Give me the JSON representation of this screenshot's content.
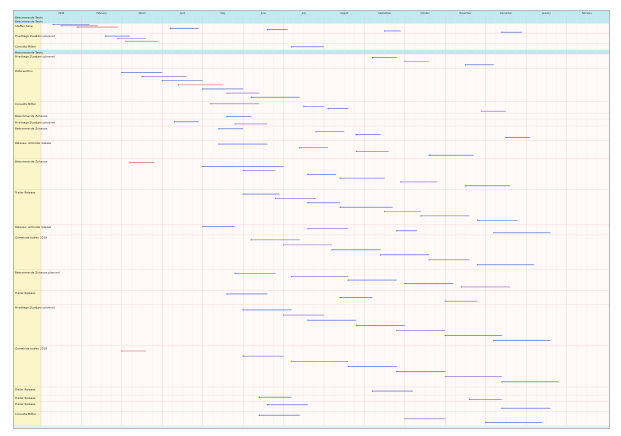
{
  "window": {
    "tab_label": "",
    "title": ""
  },
  "timeline": {
    "months": [
      "2018",
      "February",
      "March",
      "April",
      "May",
      "June",
      "July",
      "August",
      "September",
      "October",
      "November",
      "December",
      "January",
      "February"
    ],
    "weeks": [
      "",
      "",
      "",
      "",
      "",
      "",
      "",
      "",
      "",
      "",
      "",
      "",
      "",
      "",
      "",
      "",
      "",
      "",
      "",
      "",
      "",
      "",
      "",
      "",
      "",
      "",
      "",
      "",
      "",
      "",
      "",
      "",
      "",
      "",
      "",
      "",
      "",
      "",
      "",
      "",
      "",
      "",
      "",
      "",
      "",
      "",
      "",
      "",
      "",
      "",
      "",
      "",
      "",
      "",
      "",
      ""
    ]
  },
  "lanes": [
    {
      "label": "Bekommende Tasks",
      "kind": "header",
      "height": 4
    },
    {
      "label": "Bekommende Tasks",
      "kind": "header",
      "height": 4
    },
    {
      "label": "Steffen Seve",
      "kind": "row",
      "height": 10
    },
    {
      "label": "Friedhage Zusatzen planned",
      "kind": "row",
      "height": 10
    },
    {
      "label": "Consults Mittel",
      "kind": "row",
      "height": 6
    },
    {
      "label": "Bekommende Tasks",
      "kind": "header",
      "height": 4
    },
    {
      "label": "Friedhage Zusatzen planned",
      "kind": "row",
      "height": 14
    },
    {
      "label": "Data section",
      "kind": "row",
      "height": 32
    },
    {
      "label": "Consults Mittel",
      "kind": "row",
      "height": 12
    },
    {
      "label": "Bekommende Zuhause",
      "kind": "row",
      "height": 6
    },
    {
      "label": "Friedhage Zusatzen planned",
      "kind": "row",
      "height": 6
    },
    {
      "label": "Bekommende Zuhause",
      "kind": "row",
      "height": 14
    },
    {
      "label": "Release, umbrella release",
      "kind": "row",
      "height": 18
    },
    {
      "label": "Bekommende Zuhause",
      "kind": "row",
      "height": 30
    },
    {
      "label": "Trailer Release",
      "kind": "row",
      "height": 34
    },
    {
      "label": "Release, umbrella release",
      "kind": "row",
      "height": 10
    },
    {
      "label": "Gemeinde laufen 2019",
      "kind": "row",
      "height": 34
    },
    {
      "label": "Bekommende Zuhause planned",
      "kind": "row",
      "height": 20
    },
    {
      "label": "Trailer Release",
      "kind": "row",
      "height": 14
    },
    {
      "label": "Friedhage Zusatzen planned",
      "kind": "row",
      "height": 40
    },
    {
      "label": "Gemeinde laufen 2019",
      "kind": "row",
      "height": 40
    },
    {
      "label": "Trailer Release",
      "kind": "row",
      "height": 8
    },
    {
      "label": "Trailer Release",
      "kind": "row",
      "height": 6
    },
    {
      "label": "Trailer Release",
      "kind": "row",
      "height": 10
    },
    {
      "label": "Consults Mittel",
      "kind": "row",
      "height": 14
    }
  ],
  "colors": {
    "header_band": "#bfeaf0",
    "lane_fill": "#fdfad4",
    "lane_label_fill": "#fbf6c9",
    "grid_major": "#e7c9c9",
    "grid_minor": "#f2e6e6",
    "bar_blue": "#3d5bd1",
    "bar_purple": "#8a63c6",
    "bar_red": "#d35b5b"
  },
  "tasks": [
    {
      "lane": 2,
      "start": 0.3,
      "end": 1.2,
      "label": "",
      "color": "blue"
    },
    {
      "lane": 2,
      "start": 0.5,
      "end": 1.4,
      "label": "",
      "color": "purple"
    },
    {
      "lane": 2,
      "start": 0.9,
      "end": 1.9,
      "label": "",
      "color": "red"
    },
    {
      "lane": 2,
      "start": 3.2,
      "end": 3.9,
      "label": "",
      "color": "blue"
    },
    {
      "lane": 2,
      "start": 5.6,
      "end": 6.1,
      "label": "",
      "color": "blue"
    },
    {
      "lane": 2,
      "start": 8.5,
      "end": 8.9,
      "label": "",
      "color": "blue"
    },
    {
      "lane": 2,
      "start": 11.4,
      "end": 11.9,
      "label": "",
      "color": "blue"
    },
    {
      "lane": 3,
      "start": 1.6,
      "end": 2.2,
      "label": "",
      "color": "blue"
    },
    {
      "lane": 3,
      "start": 1.9,
      "end": 2.6,
      "label": "",
      "color": "purple"
    },
    {
      "lane": 3,
      "start": 2.1,
      "end": 2.9,
      "label": "",
      "color": "red"
    },
    {
      "lane": 4,
      "start": 6.2,
      "end": 7.0,
      "label": "",
      "color": "blue"
    },
    {
      "lane": 6,
      "start": 8.2,
      "end": 8.8,
      "label": "",
      "color": "blue"
    },
    {
      "lane": 6,
      "start": 9.0,
      "end": 9.6,
      "label": "",
      "color": "purple"
    },
    {
      "lane": 6,
      "start": 10.5,
      "end": 11.2,
      "label": "",
      "color": "blue"
    },
    {
      "lane": 7,
      "start": 2.0,
      "end": 3.0,
      "label": "",
      "color": "blue"
    },
    {
      "lane": 7,
      "start": 2.5,
      "end": 3.6,
      "label": "",
      "color": "purple"
    },
    {
      "lane": 7,
      "start": 3.0,
      "end": 4.0,
      "label": "",
      "color": "blue"
    },
    {
      "lane": 7,
      "start": 3.4,
      "end": 4.5,
      "label": "",
      "color": "red"
    },
    {
      "lane": 7,
      "start": 4.0,
      "end": 5.0,
      "label": "",
      "color": "blue"
    },
    {
      "lane": 7,
      "start": 4.6,
      "end": 5.4,
      "label": "",
      "color": "purple"
    },
    {
      "lane": 7,
      "start": 5.2,
      "end": 6.4,
      "label": "",
      "color": "blue"
    },
    {
      "lane": 8,
      "start": 4.2,
      "end": 5.4,
      "label": "",
      "color": "purple"
    },
    {
      "lane": 8,
      "start": 6.5,
      "end": 7.0,
      "label": "",
      "color": "blue"
    },
    {
      "lane": 8,
      "start": 7.1,
      "end": 7.6,
      "label": "",
      "color": "blue"
    },
    {
      "lane": 8,
      "start": 10.9,
      "end": 11.5,
      "label": "",
      "color": "purple"
    },
    {
      "lane": 9,
      "start": 4.6,
      "end": 5.2,
      "label": "",
      "color": "blue"
    },
    {
      "lane": 10,
      "start": 3.3,
      "end": 3.9,
      "label": "",
      "color": "blue"
    },
    {
      "lane": 10,
      "start": 4.8,
      "end": 5.6,
      "label": "",
      "color": "purple"
    },
    {
      "lane": 11,
      "start": 4.4,
      "end": 5.0,
      "label": "",
      "color": "blue"
    },
    {
      "lane": 11,
      "start": 6.8,
      "end": 7.5,
      "label": "",
      "color": "purple"
    },
    {
      "lane": 11,
      "start": 7.8,
      "end": 8.4,
      "label": "",
      "color": "blue"
    },
    {
      "lane": 11,
      "start": 11.5,
      "end": 12.1,
      "label": "",
      "color": "blue"
    },
    {
      "lane": 12,
      "start": 4.4,
      "end": 5.6,
      "label": "",
      "color": "blue"
    },
    {
      "lane": 12,
      "start": 6.4,
      "end": 7.1,
      "label": "",
      "color": "blue"
    },
    {
      "lane": 12,
      "start": 7.8,
      "end": 8.6,
      "label": "",
      "color": "purple"
    },
    {
      "lane": 12,
      "start": 9.6,
      "end": 10.7,
      "label": "",
      "color": "blue"
    },
    {
      "lane": 13,
      "start": 2.2,
      "end": 2.8,
      "label": "",
      "color": "red"
    },
    {
      "lane": 13,
      "start": 4.0,
      "end": 6.0,
      "label": "",
      "color": "blue"
    },
    {
      "lane": 13,
      "start": 5.0,
      "end": 5.8,
      "label": "",
      "color": "purple"
    },
    {
      "lane": 13,
      "start": 6.6,
      "end": 7.3,
      "label": "",
      "color": "blue"
    },
    {
      "lane": 13,
      "start": 7.4,
      "end": 8.5,
      "label": "",
      "color": "blue"
    },
    {
      "lane": 13,
      "start": 8.9,
      "end": 9.8,
      "label": "",
      "color": "purple"
    },
    {
      "lane": 13,
      "start": 10.5,
      "end": 11.6,
      "label": "",
      "color": "blue"
    },
    {
      "lane": 14,
      "start": 5.0,
      "end": 5.9,
      "label": "",
      "color": "blue"
    },
    {
      "lane": 14,
      "start": 5.8,
      "end": 6.8,
      "label": "",
      "color": "purple"
    },
    {
      "lane": 14,
      "start": 6.6,
      "end": 7.4,
      "label": "",
      "color": "blue"
    },
    {
      "lane": 14,
      "start": 7.4,
      "end": 8.7,
      "label": "",
      "color": "blue"
    },
    {
      "lane": 14,
      "start": 8.5,
      "end": 9.4,
      "label": "",
      "color": "purple"
    },
    {
      "lane": 14,
      "start": 9.4,
      "end": 10.6,
      "label": "",
      "color": "blue"
    },
    {
      "lane": 14,
      "start": 10.8,
      "end": 11.8,
      "label": "",
      "color": "blue"
    },
    {
      "lane": 15,
      "start": 4.0,
      "end": 4.8,
      "label": "",
      "color": "blue"
    },
    {
      "lane": 15,
      "start": 6.6,
      "end": 7.6,
      "label": "",
      "color": "purple"
    },
    {
      "lane": 15,
      "start": 8.8,
      "end": 9.3,
      "label": "",
      "color": "blue"
    },
    {
      "lane": 15,
      "start": 11.2,
      "end": 12.6,
      "label": "",
      "color": "blue"
    },
    {
      "lane": 16,
      "start": 5.2,
      "end": 6.4,
      "label": "",
      "color": "blue"
    },
    {
      "lane": 16,
      "start": 6.0,
      "end": 7.2,
      "label": "",
      "color": "purple"
    },
    {
      "lane": 16,
      "start": 7.2,
      "end": 8.4,
      "label": "",
      "color": "blue"
    },
    {
      "lane": 16,
      "start": 8.4,
      "end": 9.6,
      "label": "",
      "color": "blue"
    },
    {
      "lane": 16,
      "start": 9.6,
      "end": 10.6,
      "label": "",
      "color": "purple"
    },
    {
      "lane": 16,
      "start": 10.8,
      "end": 12.2,
      "label": "",
      "color": "blue"
    },
    {
      "lane": 17,
      "start": 4.8,
      "end": 5.8,
      "label": "",
      "color": "blue"
    },
    {
      "lane": 17,
      "start": 6.2,
      "end": 7.6,
      "label": "",
      "color": "purple"
    },
    {
      "lane": 17,
      "start": 7.6,
      "end": 8.8,
      "label": "",
      "color": "blue"
    },
    {
      "lane": 17,
      "start": 9.0,
      "end": 10.2,
      "label": "",
      "color": "blue"
    },
    {
      "lane": 17,
      "start": 10.4,
      "end": 11.6,
      "label": "",
      "color": "purple"
    },
    {
      "lane": 18,
      "start": 4.6,
      "end": 5.6,
      "label": "",
      "color": "blue"
    },
    {
      "lane": 18,
      "start": 7.4,
      "end": 8.2,
      "label": "",
      "color": "blue"
    },
    {
      "lane": 18,
      "start": 10.0,
      "end": 10.8,
      "label": "",
      "color": "purple"
    },
    {
      "lane": 19,
      "start": 5.0,
      "end": 6.2,
      "label": "",
      "color": "blue"
    },
    {
      "lane": 19,
      "start": 6.0,
      "end": 7.0,
      "label": "",
      "color": "purple"
    },
    {
      "lane": 19,
      "start": 6.6,
      "end": 7.8,
      "label": "",
      "color": "blue"
    },
    {
      "lane": 19,
      "start": 7.8,
      "end": 9.0,
      "label": "",
      "color": "blue"
    },
    {
      "lane": 19,
      "start": 8.8,
      "end": 10.0,
      "label": "",
      "color": "purple"
    },
    {
      "lane": 19,
      "start": 10.0,
      "end": 11.4,
      "label": "",
      "color": "blue"
    },
    {
      "lane": 19,
      "start": 11.2,
      "end": 12.6,
      "label": "",
      "color": "blue"
    },
    {
      "lane": 20,
      "start": 2.0,
      "end": 2.6,
      "label": "",
      "color": "red"
    },
    {
      "lane": 20,
      "start": 5.0,
      "end": 6.0,
      "label": "",
      "color": "blue"
    },
    {
      "lane": 20,
      "start": 6.2,
      "end": 7.6,
      "label": "",
      "color": "purple"
    },
    {
      "lane": 20,
      "start": 7.6,
      "end": 8.8,
      "label": "",
      "color": "blue"
    },
    {
      "lane": 20,
      "start": 8.8,
      "end": 10.0,
      "label": "",
      "color": "blue"
    },
    {
      "lane": 20,
      "start": 10.0,
      "end": 11.4,
      "label": "",
      "color": "purple"
    },
    {
      "lane": 20,
      "start": 11.4,
      "end": 12.8,
      "label": "",
      "color": "blue"
    },
    {
      "lane": 21,
      "start": 8.2,
      "end": 9.2,
      "label": "",
      "color": "blue"
    },
    {
      "lane": 22,
      "start": 5.4,
      "end": 6.2,
      "label": "",
      "color": "blue"
    },
    {
      "lane": 22,
      "start": 10.6,
      "end": 11.4,
      "label": "",
      "color": "purple"
    },
    {
      "lane": 23,
      "start": 5.6,
      "end": 6.6,
      "label": "",
      "color": "blue"
    },
    {
      "lane": 23,
      "start": 11.4,
      "end": 12.6,
      "label": "",
      "color": "blue"
    },
    {
      "lane": 24,
      "start": 5.4,
      "end": 6.4,
      "label": "",
      "color": "blue"
    },
    {
      "lane": 24,
      "start": 9.0,
      "end": 10.0,
      "label": "",
      "color": "purple"
    },
    {
      "lane": 24,
      "start": 11.0,
      "end": 12.4,
      "label": "",
      "color": "blue"
    }
  ]
}
